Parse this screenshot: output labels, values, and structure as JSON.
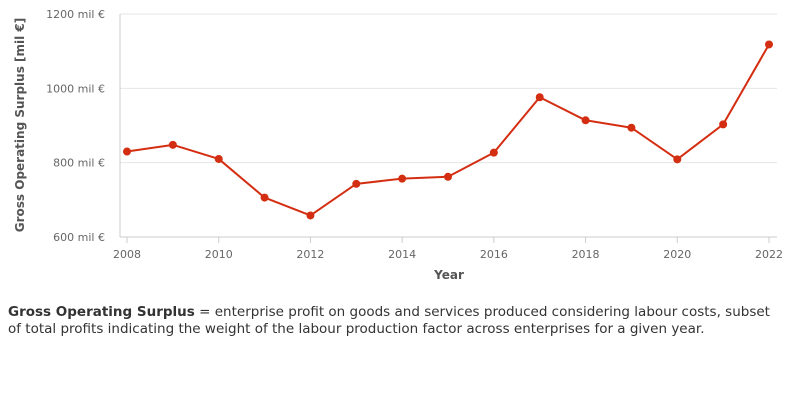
{
  "chart_data": {
    "type": "line",
    "x": [
      2008,
      2009,
      2010,
      2011,
      2012,
      2013,
      2014,
      2015,
      2016,
      2017,
      2018,
      2019,
      2020,
      2021,
      2022
    ],
    "series": [
      {
        "values": [
          830,
          848,
          810,
          706,
          658,
          743,
          757,
          762,
          827,
          976,
          914,
          894,
          809,
          903,
          1118
        ]
      }
    ],
    "xlabel": "Year",
    "ylabel": "Gross Operating Surplus [mil €]",
    "xlim": [
      2008,
      2022
    ],
    "ylim": [
      600,
      1200
    ],
    "x_ticks": [
      "2008",
      "2010",
      "2012",
      "2014",
      "2016",
      "2018",
      "2020",
      "2022"
    ],
    "y_ticks": [
      "600 mil €",
      "800 mil €",
      "1000 mil €",
      "1200 mil €"
    ],
    "grid": true,
    "line_color": "#d42e12"
  },
  "note": {
    "term": "Gross Operating Surplus",
    "text": " = enterprise profit on goods and services produced considering labour costs, subset of total profits indicating the weight of the labour production factor across enterprises for a given year."
  }
}
